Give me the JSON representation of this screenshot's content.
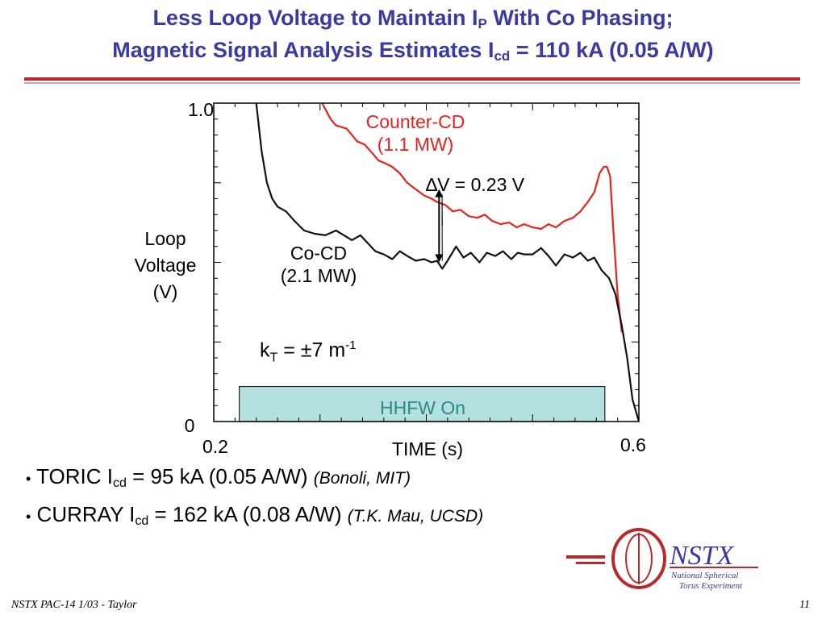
{
  "slide": {
    "title_line1_pre": "Less Loop Voltage to Maintain I",
    "title_line1_sub": "P",
    "title_line1_post": " With Co Phasing;",
    "title_line2_pre": "Magnetic Signal Analysis Estimates I",
    "title_line2_sub": "cd",
    "title_line2_post": " = 110 kA (0.05 A/W)",
    "bullets": [
      {
        "marker": "•",
        "pre": "TORIC I",
        "sub": "cd",
        "post": " = 95 kA (0.05 A/W) ",
        "cite": "(Bonoli, MIT)"
      },
      {
        "marker": "•",
        "pre": "CURRAY I",
        "sub": "cd",
        "post": " = 162 kA (0.08 A/W) ",
        "cite": "(T.K. Mau, UCSD)"
      }
    ],
    "footer": "NSTX PAC-14 1/03 - Taylor",
    "page_number": "11",
    "logo": {
      "name": "NSTX",
      "line1": "National Spherical",
      "line2": "Torus Experiment"
    }
  },
  "chart_data": {
    "type": "line",
    "xlabel": "TIME (s)",
    "ylabel_lines": [
      "Loop",
      "Voltage",
      "(V)"
    ],
    "xlim": [
      0.2,
      0.6
    ],
    "ylim": [
      0,
      1.0
    ],
    "x_tick_labels": [
      "0.2",
      "0.6"
    ],
    "y_tick_labels": [
      "0",
      "1.0"
    ],
    "series": [
      {
        "name_lines": [
          "Counter-CD",
          "(1.1 MW)"
        ],
        "color": "#e8231e",
        "points": [
          [
            0.302,
            1.0
          ],
          [
            0.31,
            0.95
          ],
          [
            0.315,
            0.93
          ],
          [
            0.325,
            0.92
          ],
          [
            0.335,
            0.88
          ],
          [
            0.342,
            0.87
          ],
          [
            0.35,
            0.84
          ],
          [
            0.355,
            0.82
          ],
          [
            0.362,
            0.81
          ],
          [
            0.368,
            0.8
          ],
          [
            0.375,
            0.78
          ],
          [
            0.382,
            0.75
          ],
          [
            0.39,
            0.73
          ],
          [
            0.398,
            0.71
          ],
          [
            0.405,
            0.7
          ],
          [
            0.41,
            0.69
          ],
          [
            0.418,
            0.68
          ],
          [
            0.425,
            0.66
          ],
          [
            0.432,
            0.665
          ],
          [
            0.44,
            0.645
          ],
          [
            0.448,
            0.64
          ],
          [
            0.455,
            0.65
          ],
          [
            0.462,
            0.63
          ],
          [
            0.47,
            0.62
          ],
          [
            0.478,
            0.625
          ],
          [
            0.485,
            0.61
          ],
          [
            0.492,
            0.62
          ],
          [
            0.5,
            0.61
          ],
          [
            0.508,
            0.605
          ],
          [
            0.515,
            0.62
          ],
          [
            0.522,
            0.61
          ],
          [
            0.53,
            0.63
          ],
          [
            0.538,
            0.64
          ],
          [
            0.545,
            0.66
          ],
          [
            0.552,
            0.69
          ],
          [
            0.558,
            0.72
          ],
          [
            0.563,
            0.78
          ],
          [
            0.567,
            0.8
          ],
          [
            0.57,
            0.8
          ],
          [
            0.573,
            0.77
          ],
          [
            0.576,
            0.6
          ],
          [
            0.58,
            0.4
          ],
          [
            0.584,
            0.28
          ]
        ]
      },
      {
        "name_lines": [
          "Co-CD",
          "(2.1 MW)"
        ],
        "color": "#111111",
        "points": [
          [
            0.24,
            1.0
          ],
          [
            0.245,
            0.85
          ],
          [
            0.25,
            0.75
          ],
          [
            0.255,
            0.7
          ],
          [
            0.26,
            0.675
          ],
          [
            0.268,
            0.66
          ],
          [
            0.276,
            0.63
          ],
          [
            0.285,
            0.6
          ],
          [
            0.295,
            0.59
          ],
          [
            0.305,
            0.585
          ],
          [
            0.315,
            0.6
          ],
          [
            0.325,
            0.58
          ],
          [
            0.33,
            0.57
          ],
          [
            0.338,
            0.585
          ],
          [
            0.345,
            0.56
          ],
          [
            0.352,
            0.535
          ],
          [
            0.36,
            0.525
          ],
          [
            0.368,
            0.51
          ],
          [
            0.375,
            0.535
          ],
          [
            0.382,
            0.52
          ],
          [
            0.39,
            0.505
          ],
          [
            0.398,
            0.51
          ],
          [
            0.405,
            0.5
          ],
          [
            0.41,
            0.505
          ],
          [
            0.415,
            0.48
          ],
          [
            0.42,
            0.505
          ],
          [
            0.428,
            0.55
          ],
          [
            0.435,
            0.515
          ],
          [
            0.442,
            0.53
          ],
          [
            0.45,
            0.5
          ],
          [
            0.457,
            0.53
          ],
          [
            0.465,
            0.52
          ],
          [
            0.472,
            0.535
          ],
          [
            0.48,
            0.51
          ],
          [
            0.486,
            0.53
          ],
          [
            0.492,
            0.525
          ],
          [
            0.5,
            0.525
          ],
          [
            0.508,
            0.545
          ],
          [
            0.515,
            0.52
          ],
          [
            0.522,
            0.49
          ],
          [
            0.53,
            0.525
          ],
          [
            0.538,
            0.515
          ],
          [
            0.545,
            0.53
          ],
          [
            0.552,
            0.505
          ],
          [
            0.558,
            0.515
          ],
          [
            0.565,
            0.475
          ],
          [
            0.572,
            0.45
          ],
          [
            0.578,
            0.4
          ],
          [
            0.584,
            0.3
          ],
          [
            0.589,
            0.2
          ],
          [
            0.594,
            0.07
          ],
          [
            0.6,
            0.0
          ]
        ]
      }
    ],
    "annotations": {
      "delta_v": "∆V = 0.23 V",
      "kt_pre": "k",
      "kt_sub": "T",
      "kt_mid": " = ±7 m",
      "kt_sup": "-1",
      "hhfw_label": "HHFW On",
      "hhfw_x": [
        0.224,
        0.568
      ],
      "hhfw_y": [
        0,
        0.11
      ],
      "hhfw_fill": "#b5e0e0",
      "hhfw_text_color": "#2a8a8a",
      "arrow": {
        "x": 0.412,
        "y_top": 0.73,
        "y_bottom": 0.5
      }
    },
    "grid": false
  }
}
